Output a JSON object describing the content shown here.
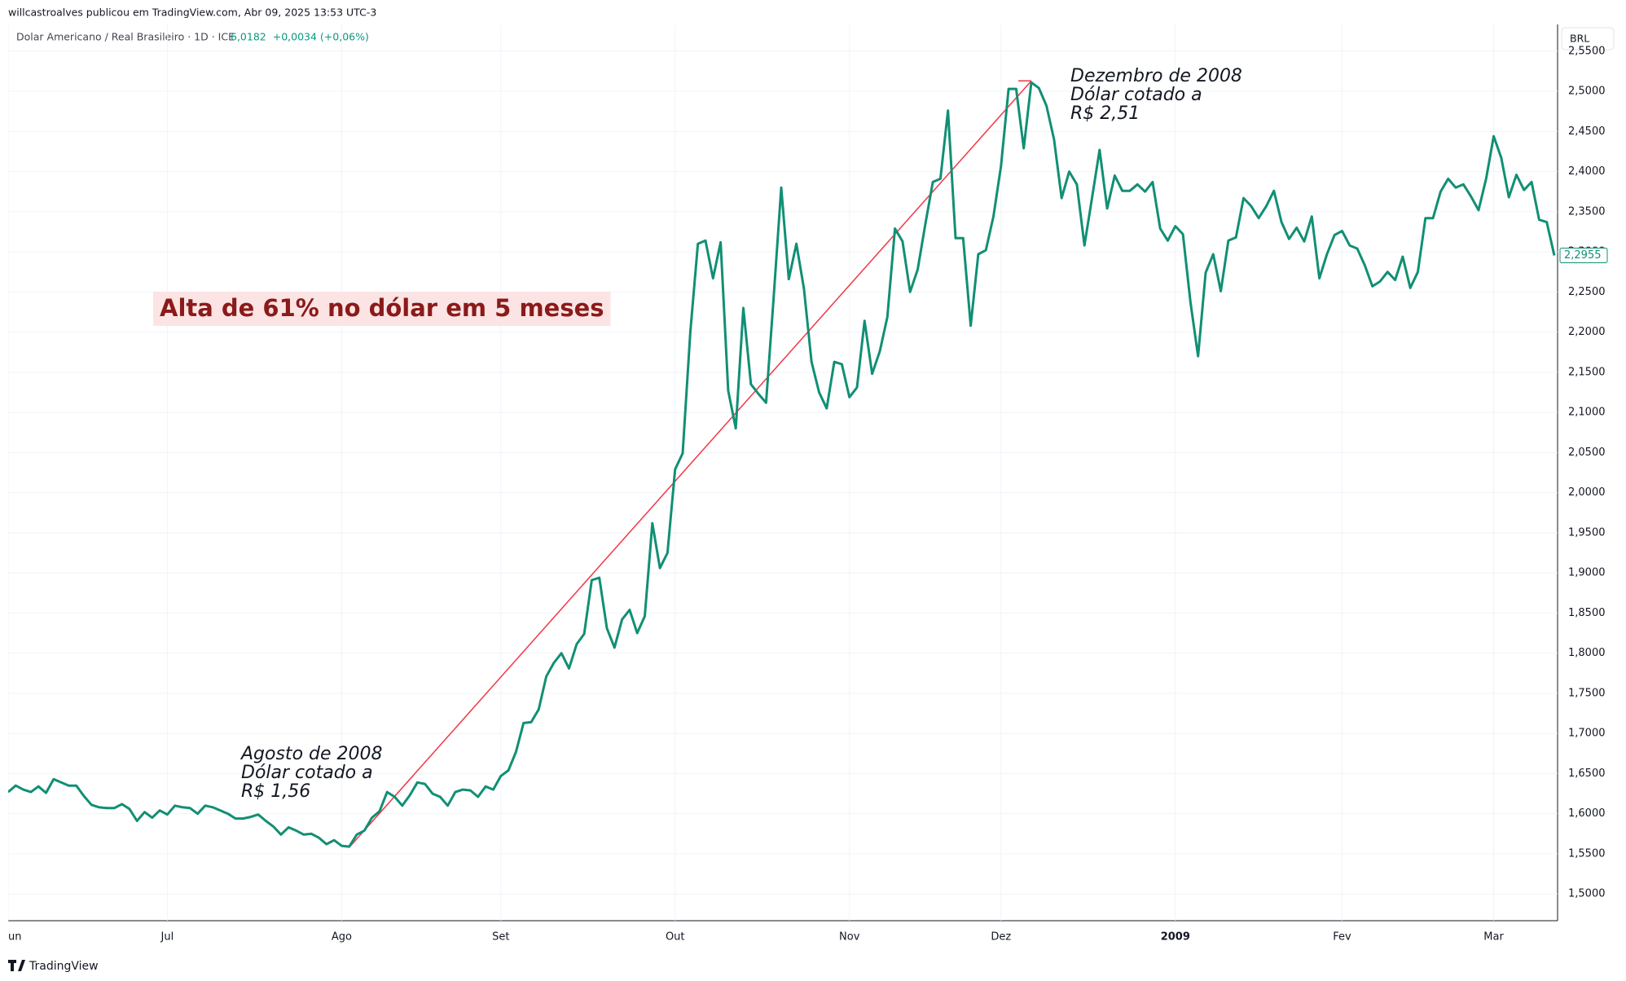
{
  "header": {
    "publisher": "willcastroalves publicou em TradingView.com, Abr 09, 2025 13:53 UTC-3",
    "symbol": "Dolar Americano / Real Brasileiro · 1D · ICE",
    "price": "6,0182",
    "change": "+0,0034 (+0,06%)",
    "currency": "BRL"
  },
  "footer": {
    "brand": "TradingView"
  },
  "chart_data": {
    "type": "line",
    "color": "#118f74",
    "grid": true,
    "categories": [
      "un",
      null,
      null,
      null,
      null,
      null,
      null,
      null,
      null,
      null,
      null,
      null,
      null,
      null,
      null,
      null,
      null,
      null,
      null,
      null,
      null,
      "Jul",
      null,
      null,
      null,
      null,
      null,
      null,
      null,
      null,
      null,
      null,
      null,
      null,
      null,
      null,
      null,
      null,
      null,
      null,
      null,
      null,
      null,
      null,
      "Ago",
      null,
      null,
      null,
      null,
      null,
      null,
      null,
      null,
      null,
      null,
      null,
      null,
      null,
      null,
      null,
      null,
      null,
      null,
      null,
      null,
      "Set",
      null,
      null,
      null,
      null,
      null,
      null,
      null,
      null,
      null,
      null,
      null,
      null,
      null,
      null,
      null,
      null,
      null,
      null,
      null,
      null,
      null,
      null,
      "Out",
      null,
      null,
      null,
      null,
      null,
      null,
      null,
      null,
      null,
      null,
      null,
      null,
      null,
      null,
      null,
      null,
      null,
      null,
      null,
      null,
      null,
      null,
      "Nov",
      null,
      null,
      null,
      null,
      null,
      null,
      null,
      null,
      null,
      null,
      null,
      null,
      null,
      null,
      null,
      null,
      null,
      null,
      null,
      "Dez",
      null,
      null,
      null,
      null,
      null,
      null,
      null,
      null,
      null,
      null,
      null,
      null,
      null,
      null,
      null,
      null,
      null,
      null,
      null,
      null,
      null,
      null,
      "2009",
      null,
      null,
      null,
      null,
      null,
      null,
      null,
      null,
      null,
      null,
      null,
      null,
      null,
      null,
      null,
      null,
      null,
      null,
      null,
      null,
      null,
      "Fev",
      null,
      null,
      null,
      null,
      null,
      null,
      null,
      null,
      null,
      null,
      null,
      null,
      null,
      null,
      null,
      null,
      null,
      null,
      null,
      "Mar",
      null,
      null,
      null,
      null,
      null,
      null,
      null,
      null
    ],
    "values": [
      1.627,
      1.635,
      1.63,
      1.627,
      1.634,
      1.626,
      1.643,
      1.639,
      1.635,
      1.635,
      1.622,
      1.611,
      1.608,
      1.607,
      1.607,
      1.612,
      1.606,
      1.591,
      1.602,
      1.595,
      1.604,
      1.599,
      1.61,
      1.608,
      1.607,
      1.6,
      1.61,
      1.608,
      1.604,
      1.6,
      1.594,
      1.594,
      1.596,
      1.599,
      1.591,
      1.584,
      1.574,
      1.583,
      1.579,
      1.574,
      1.575,
      1.57,
      1.562,
      1.567,
      1.56,
      1.559,
      1.574,
      1.579,
      1.595,
      1.603,
      1.627,
      1.621,
      1.61,
      1.623,
      1.639,
      1.637,
      1.625,
      1.621,
      1.61,
      1.627,
      1.63,
      1.629,
      1.621,
      1.634,
      1.63,
      1.647,
      1.654,
      1.677,
      1.713,
      1.714,
      1.73,
      1.771,
      1.788,
      1.8,
      1.781,
      1.811,
      1.824,
      1.891,
      1.894,
      1.831,
      1.807,
      1.842,
      1.854,
      1.825,
      1.846,
      1.962,
      1.906,
      1.925,
      2.029,
      2.049,
      2.2,
      2.31,
      2.314,
      2.267,
      2.312,
      2.127,
      2.08,
      2.23,
      2.135,
      2.123,
      2.112,
      2.243,
      2.38,
      2.266,
      2.31,
      2.254,
      2.163,
      2.125,
      2.105,
      2.163,
      2.16,
      2.119,
      2.131,
      2.214,
      2.148,
      2.176,
      2.219,
      2.329,
      2.313,
      2.25,
      2.278,
      2.334,
      2.387,
      2.391,
      2.476,
      2.317,
      2.317,
      2.208,
      2.297,
      2.302,
      2.344,
      2.407,
      2.503,
      2.503,
      2.429,
      2.511,
      2.504,
      2.482,
      2.44,
      2.367,
      2.4,
      2.384,
      2.308,
      2.367,
      2.427,
      2.354,
      2.395,
      2.376,
      2.376,
      2.384,
      2.375,
      2.387,
      2.329,
      2.314,
      2.332,
      2.322,
      2.237,
      2.17,
      2.274,
      2.297,
      2.251,
      2.314,
      2.318,
      2.367,
      2.357,
      2.342,
      2.357,
      2.376,
      2.337,
      2.316,
      2.33,
      2.313,
      2.344,
      2.267,
      2.297,
      2.321,
      2.326,
      2.308,
      2.304,
      2.283,
      2.257,
      2.263,
      2.275,
      2.265,
      2.294,
      2.255,
      2.275,
      2.342,
      2.342,
      2.375,
      2.391,
      2.38,
      2.384,
      2.369,
      2.352,
      2.391,
      2.444,
      2.417,
      2.368,
      2.396,
      2.377,
      2.387,
      2.34,
      2.337,
      2.2955
    ],
    "last_label": "2,2955",
    "ylim": [
      1.4667,
      2.5833
    ],
    "yticks": [
      {
        "value": 1.5,
        "label": "1,5000"
      },
      {
        "value": 1.55,
        "label": "1,5500"
      },
      {
        "value": 1.6,
        "label": "1,6000"
      },
      {
        "value": 1.65,
        "label": "1,6500"
      },
      {
        "value": 1.7,
        "label": "1,7000"
      },
      {
        "value": 1.75,
        "label": "1,7500"
      },
      {
        "value": 1.8,
        "label": "1,8000"
      },
      {
        "value": 1.85,
        "label": "1,8500"
      },
      {
        "value": 1.9,
        "label": "1,9000"
      },
      {
        "value": 1.95,
        "label": "1,9500"
      },
      {
        "value": 2.0,
        "label": "2,0000"
      },
      {
        "value": 2.05,
        "label": "2,0500"
      },
      {
        "value": 2.1,
        "label": "2,1000"
      },
      {
        "value": 2.15,
        "label": "2,1500"
      },
      {
        "value": 2.2,
        "label": "2,2000"
      },
      {
        "value": 2.25,
        "label": "2,2500"
      },
      {
        "value": 2.3,
        "label": "2,3000"
      },
      {
        "value": 2.35,
        "label": "2,3500"
      },
      {
        "value": 2.4,
        "label": "2,4000"
      },
      {
        "value": 2.45,
        "label": "2,4500"
      },
      {
        "value": 2.5,
        "label": "2,5000"
      },
      {
        "value": 2.55,
        "label": "2,5500"
      }
    ],
    "trend_line": {
      "color": "#f23645",
      "start": {
        "index": 45,
        "value": 1.558
      },
      "end": {
        "index": 135,
        "value": 2.513
      }
    },
    "annotations": {
      "headline": "Alta de 61% no dólar em 5 meses",
      "start": [
        "Agosto de 2008",
        "Dólar cotado a",
        "R$ 1,56"
      ],
      "end": [
        "Dezembro de 2008",
        "Dólar cotado a",
        "R$ 2,51"
      ]
    }
  }
}
